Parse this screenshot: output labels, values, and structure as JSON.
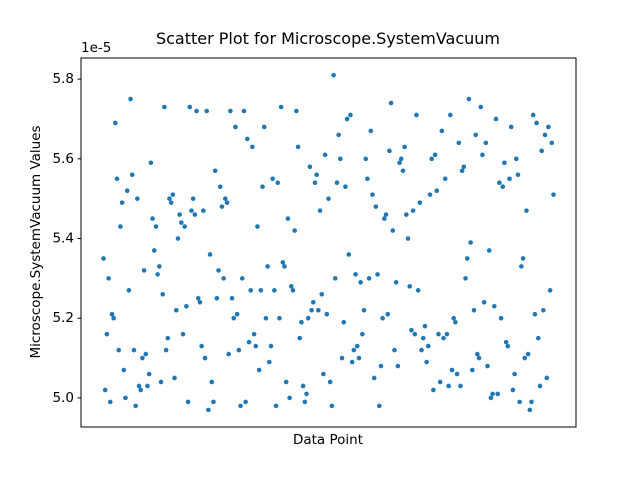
{
  "chart_data": {
    "type": "scatter",
    "title": "Scatter Plot for Microscope.SystemVacuum",
    "x_label": "Data Point",
    "y_label": "Microscope.SystemVacuum Values",
    "y_offset_label": "1e-5",
    "color": "#1f77b4",
    "xlim": [
      -13.3,
      279.3
    ],
    "ylim": [
      4.927,
      5.853
    ],
    "yticks": [
      {
        "value": 5.0,
        "label": "5.0"
      },
      5.2,
      5.4,
      5.6,
      5.8
    ],
    "values": [
      5.35,
      5.02,
      5.16,
      5.3,
      4.99,
      5.21,
      5.2,
      5.69,
      5.55,
      5.12,
      5.43,
      5.49,
      5.07,
      5.0,
      5.52,
      5.27,
      5.75,
      5.56,
      5.12,
      4.98,
      5.5,
      5.03,
      5.02,
      5.1,
      5.32,
      5.11,
      5.03,
      5.06,
      5.59,
      5.45,
      5.37,
      5.43,
      5.31,
      5.33,
      5.04,
      5.26,
      5.73,
      5.12,
      5.15,
      5.5,
      5.49,
      5.51,
      5.05,
      5.22,
      5.4,
      5.46,
      5.44,
      5.16,
      5.43,
      5.23,
      4.99,
      5.73,
      5.47,
      5.5,
      5.46,
      5.72,
      5.25,
      5.24,
      5.13,
      5.47,
      5.1,
      5.72,
      4.97,
      5.36,
      5.04,
      4.99,
      5.57,
      5.25,
      5.32,
      5.53,
      5.48,
      5.3,
      5.5,
      5.49,
      5.11,
      5.72,
      5.25,
      5.2,
      5.68,
      5.21,
      5.12,
      4.98,
      5.3,
      5.72,
      4.99,
      5.65,
      5.14,
      5.27,
      5.63,
      5.16,
      5.13,
      5.43,
      5.07,
      5.27,
      5.53,
      5.68,
      5.2,
      5.33,
      5.09,
      5.13,
      5.55,
      5.27,
      4.98,
      5.54,
      5.2,
      5.73,
      5.34,
      5.33,
      5.04,
      5.45,
      5.0,
      5.28,
      5.27,
      5.42,
      5.72,
      5.63,
      5.15,
      5.19,
      5.03,
      4.99,
      5.01,
      5.2,
      5.58,
      5.22,
      5.24,
      5.54,
      5.56,
      5.22,
      5.47,
      5.26,
      5.06,
      5.61,
      5.21,
      5.5,
      5.04,
      4.98,
      5.81,
      5.3,
      5.54,
      5.66,
      5.6,
      5.1,
      5.19,
      5.53,
      5.7,
      5.36,
      5.71,
      5.09,
      5.12,
      5.31,
      5.13,
      5.1,
      5.29,
      5.16,
      5.22,
      5.6,
      5.55,
      5.3,
      5.67,
      5.51,
      5.05,
      5.48,
      5.31,
      4.98,
      5.08,
      5.2,
      5.45,
      5.46,
      5.21,
      5.62,
      5.74,
      5.42,
      5.12,
      5.29,
      5.08,
      5.59,
      5.6,
      5.57,
      5.63,
      5.46,
      5.4,
      5.28,
      5.17,
      5.47,
      5.16,
      5.71,
      5.27,
      5.49,
      5.12,
      5.15,
      5.18,
      5.09,
      5.13,
      5.51,
      5.6,
      5.02,
      5.61,
      5.52,
      5.16,
      5.04,
      5.67,
      5.15,
      5.55,
      5.16,
      5.03,
      5.71,
      5.07,
      5.2,
      5.19,
      5.06,
      5.64,
      5.03,
      5.57,
      5.58,
      5.3,
      5.35,
      5.75,
      5.39,
      5.07,
      5.22,
      5.66,
      5.11,
      5.1,
      5.73,
      5.61,
      5.24,
      5.64,
      5.08,
      5.37,
      5.0,
      5.01,
      5.23,
      5.7,
      5.01,
      5.54,
      5.2,
      5.53,
      5.59,
      5.14,
      5.13,
      5.55,
      5.68,
      5.02,
      5.06,
      5.6,
      5.56,
      4.99,
      5.33,
      5.35,
      5.1,
      5.47,
      5.11,
      4.97,
      4.99,
      5.71,
      5.21,
      5.69,
      5.15,
      5.03,
      5.62,
      5.22,
      5.66,
      5.05,
      5.68,
      5.27,
      5.64,
      5.51
    ]
  }
}
